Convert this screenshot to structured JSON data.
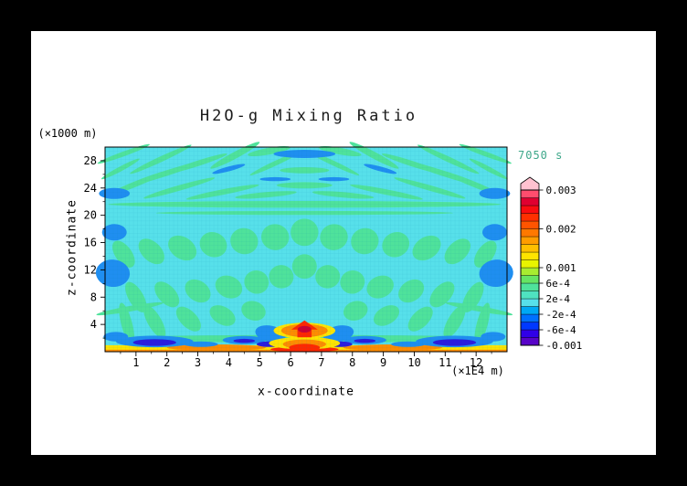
{
  "window": {
    "background": "#000000",
    "page_background": "#ffffff"
  },
  "chart_data": {
    "type": "heatmap",
    "title": "H2O-g Mixing Ratio",
    "xlabel": "x-coordinate",
    "ylabel": "z-coordinate",
    "x_unit": "(×1E4 m)",
    "y_unit": "(×1000 m)",
    "time_label": "7050 s",
    "time_color": "#3da789",
    "grid": true,
    "legend_position": "right",
    "xlim": [
      0,
      13
    ],
    "zlim": [
      0,
      30
    ],
    "x_ticks": [
      1,
      2,
      3,
      4,
      5,
      6,
      7,
      8,
      9,
      10,
      11,
      12
    ],
    "z_ticks": [
      4,
      8,
      12,
      16,
      20,
      24,
      28
    ],
    "colorbar": {
      "min": -0.001,
      "max": 0.003,
      "band_step": 0.0002,
      "labels": [
        "0.003",
        "0.002",
        "0.001",
        "6e-4",
        "2e-4",
        "-2e-4",
        "-6e-4",
        "-0.001"
      ],
      "label_values": [
        0.003,
        0.002,
        0.001,
        0.0006,
        0.0002,
        -0.0002,
        -0.0006,
        -0.001
      ],
      "colors_bottom_to_top": [
        "#5804c8",
        "#3000e8",
        "#0038ff",
        "#0070ff",
        "#00a8f4",
        "#57e0ea",
        "#4fe2c0",
        "#4fe29b",
        "#66e463",
        "#a8ec30",
        "#e8f400",
        "#ffe400",
        "#ffc000",
        "#ff9c00",
        "#ff7800",
        "#ff5400",
        "#ff3000",
        "#fa0c10",
        "#e00030",
        "#ff4d6e"
      ],
      "overflow_color": "#ffc2d0"
    },
    "field": {
      "background_color": "#57e0ea",
      "palette": {
        "green": "#4fe29b",
        "blue": "#1f8ef0",
        "navy": "#2b1bdc",
        "yellow": "#ffe400",
        "orange": "#ff8c00",
        "red": "#ff2800",
        "darkred": "#cc0033"
      },
      "source_location": {
        "x": 6.45,
        "z": 3.2
      },
      "shapes": [
        [
          "e",
          0.6,
          29.0,
          0.9,
          0.35,
          -20,
          "green"
        ],
        [
          "e",
          1.8,
          28.2,
          1.1,
          0.4,
          -25,
          "green"
        ],
        [
          "e",
          3.0,
          27.6,
          1.0,
          0.4,
          -18,
          "green"
        ],
        [
          "e",
          4.2,
          28.8,
          0.9,
          0.5,
          -28,
          "green"
        ],
        [
          "e",
          5.3,
          29.4,
          0.7,
          0.5,
          -10,
          "green"
        ],
        [
          "e",
          7.6,
          29.4,
          0.7,
          0.5,
          10,
          "green"
        ],
        [
          "e",
          8.7,
          28.8,
          0.9,
          0.5,
          28,
          "green"
        ],
        [
          "e",
          9.9,
          27.6,
          1.0,
          0.4,
          18,
          "green"
        ],
        [
          "e",
          11.1,
          28.2,
          1.1,
          0.4,
          25,
          "green"
        ],
        [
          "e",
          12.3,
          29.0,
          0.9,
          0.35,
          20,
          "green"
        ],
        [
          "e",
          5.5,
          27.6,
          0.9,
          0.35,
          -25,
          "green"
        ],
        [
          "e",
          7.4,
          27.6,
          0.9,
          0.35,
          25,
          "green"
        ],
        [
          "e",
          2.0,
          26.2,
          1.2,
          0.4,
          -18,
          "green"
        ],
        [
          "e",
          10.9,
          26.2,
          1.2,
          0.4,
          18,
          "green"
        ],
        [
          "e",
          6.45,
          26.6,
          0.8,
          0.45,
          0,
          "green"
        ],
        [
          "e",
          0.5,
          26.8,
          0.7,
          0.35,
          -28,
          "green"
        ],
        [
          "e",
          12.4,
          26.8,
          0.7,
          0.35,
          28,
          "green"
        ],
        [
          "e",
          1.0,
          24.6,
          1.1,
          0.4,
          -22,
          "green"
        ],
        [
          "e",
          2.4,
          24.0,
          1.2,
          0.4,
          -16,
          "green"
        ],
        [
          "e",
          3.8,
          23.4,
          1.2,
          0.4,
          -11,
          "green"
        ],
        [
          "e",
          5.2,
          23.0,
          1.0,
          0.4,
          -5,
          "green"
        ],
        [
          "e",
          6.45,
          24.4,
          0.9,
          0.45,
          0,
          "green"
        ],
        [
          "e",
          7.7,
          23.0,
          1.0,
          0.4,
          5,
          "green"
        ],
        [
          "e",
          9.1,
          23.4,
          1.2,
          0.4,
          11,
          "green"
        ],
        [
          "e",
          10.5,
          24.0,
          1.2,
          0.4,
          16,
          "green"
        ],
        [
          "e",
          11.9,
          24.6,
          1.1,
          0.4,
          22,
          "green"
        ],
        [
          "e",
          6.45,
          21.6,
          6.35,
          0.5,
          0,
          "green"
        ],
        [
          "e",
          6.45,
          20.35,
          4.8,
          0.3,
          0,
          "green"
        ],
        [
          "e",
          6.45,
          17.5,
          0.45,
          2.0,
          0,
          "green"
        ],
        [
          "e",
          5.5,
          16.8,
          0.45,
          1.9,
          8,
          "green"
        ],
        [
          "e",
          7.4,
          16.8,
          0.45,
          1.9,
          -8,
          "green"
        ],
        [
          "e",
          4.5,
          16.2,
          0.45,
          1.9,
          16,
          "green"
        ],
        [
          "e",
          8.4,
          16.2,
          0.45,
          1.9,
          -16,
          "green"
        ],
        [
          "e",
          3.5,
          15.7,
          0.45,
          1.8,
          25,
          "green"
        ],
        [
          "e",
          9.4,
          15.7,
          0.45,
          1.8,
          -25,
          "green"
        ],
        [
          "e",
          2.5,
          15.2,
          0.5,
          1.6,
          34,
          "green"
        ],
        [
          "e",
          10.4,
          15.2,
          0.5,
          1.6,
          -34,
          "green"
        ],
        [
          "e",
          1.5,
          14.7,
          0.5,
          1.4,
          44,
          "green"
        ],
        [
          "e",
          11.4,
          14.7,
          0.5,
          1.4,
          -44,
          "green"
        ],
        [
          "e",
          0.6,
          14.3,
          0.5,
          1.2,
          54,
          "green"
        ],
        [
          "e",
          12.3,
          14.3,
          0.5,
          1.2,
          -54,
          "green"
        ],
        [
          "e",
          6.45,
          12.5,
          0.4,
          1.8,
          0,
          "green"
        ],
        [
          "e",
          5.7,
          11.0,
          0.4,
          1.7,
          7,
          "green"
        ],
        [
          "e",
          7.2,
          11.0,
          0.4,
          1.7,
          -7,
          "green"
        ],
        [
          "e",
          4.9,
          10.2,
          0.4,
          1.7,
          15,
          "green"
        ],
        [
          "e",
          8.0,
          10.2,
          0.4,
          1.7,
          -15,
          "green"
        ],
        [
          "e",
          4.0,
          9.5,
          0.45,
          1.6,
          24,
          "green"
        ],
        [
          "e",
          8.9,
          9.5,
          0.45,
          1.6,
          -24,
          "green"
        ],
        [
          "e",
          3.0,
          8.9,
          0.45,
          1.5,
          35,
          "green"
        ],
        [
          "e",
          9.9,
          8.9,
          0.45,
          1.5,
          -35,
          "green"
        ],
        [
          "e",
          2.0,
          8.4,
          0.5,
          1.3,
          47,
          "green"
        ],
        [
          "e",
          10.9,
          8.4,
          0.5,
          1.3,
          -47,
          "green"
        ],
        [
          "e",
          1.0,
          8.0,
          0.55,
          1.1,
          60,
          "green"
        ],
        [
          "e",
          11.9,
          8.0,
          0.55,
          1.1,
          -60,
          "green"
        ],
        [
          "e",
          4.8,
          6.0,
          0.4,
          1.4,
          18,
          "green"
        ],
        [
          "e",
          8.1,
          6.0,
          0.4,
          1.4,
          -18,
          "green"
        ],
        [
          "e",
          3.8,
          5.3,
          0.45,
          1.3,
          30,
          "green"
        ],
        [
          "e",
          9.1,
          5.3,
          0.45,
          1.3,
          -30,
          "green"
        ],
        [
          "e",
          2.7,
          4.8,
          0.5,
          1.2,
          45,
          "green"
        ],
        [
          "e",
          10.2,
          4.8,
          0.5,
          1.2,
          -45,
          "green"
        ],
        [
          "e",
          1.6,
          4.4,
          0.6,
          1.0,
          60,
          "green"
        ],
        [
          "e",
          11.3,
          4.4,
          0.6,
          1.0,
          -60,
          "green"
        ],
        [
          "e",
          0.7,
          4.1,
          0.7,
          0.8,
          75,
          "green"
        ],
        [
          "e",
          12.2,
          4.1,
          0.7,
          0.8,
          -75,
          "green"
        ],
        [
          "e",
          0.8,
          6.3,
          1.1,
          0.4,
          -10,
          "green"
        ],
        [
          "e",
          12.1,
          6.3,
          1.1,
          0.4,
          10,
          "green"
        ],
        [
          "e",
          6.45,
          1.9,
          6.5,
          0.55,
          0,
          "green"
        ],
        [
          "r",
          0,
          0,
          13,
          0.95,
          "yellow"
        ],
        [
          "e",
          3.6,
          0.6,
          1.6,
          0.45,
          0,
          "orange"
        ],
        [
          "e",
          9.3,
          0.6,
          1.6,
          0.45,
          0,
          "orange"
        ],
        [
          "r",
          0,
          0,
          13,
          0.3,
          "orange"
        ],
        [
          "e",
          6.45,
          0.35,
          1.1,
          0.4,
          0,
          "red"
        ],
        [
          "e",
          6.45,
          29.0,
          1.0,
          0.6,
          0,
          "blue"
        ],
        [
          "e",
          4.0,
          26.8,
          0.55,
          0.35,
          -15,
          "blue"
        ],
        [
          "e",
          8.9,
          26.8,
          0.55,
          0.35,
          15,
          "blue"
        ],
        [
          "e",
          0.3,
          23.2,
          0.5,
          0.8,
          0,
          "blue"
        ],
        [
          "e",
          12.6,
          23.2,
          0.5,
          0.8,
          0,
          "blue"
        ],
        [
          "e",
          5.5,
          25.3,
          0.5,
          0.3,
          0,
          "blue"
        ],
        [
          "e",
          7.4,
          25.3,
          0.5,
          0.3,
          0,
          "blue"
        ],
        [
          "e",
          0.25,
          11.5,
          0.55,
          2.0,
          5,
          "blue"
        ],
        [
          "e",
          12.65,
          11.5,
          0.55,
          2.0,
          -5,
          "blue"
        ],
        [
          "e",
          0.3,
          17.5,
          0.4,
          1.2,
          0,
          "blue"
        ],
        [
          "e",
          12.6,
          17.5,
          0.4,
          1.2,
          0,
          "blue"
        ],
        [
          "e",
          5.35,
          2.6,
          0.5,
          1.2,
          12,
          "blue"
        ],
        [
          "e",
          7.55,
          2.6,
          0.5,
          1.2,
          -12,
          "blue"
        ],
        [
          "e",
          1.6,
          1.5,
          1.25,
          0.85,
          0,
          "blue"
        ],
        [
          "e",
          11.3,
          1.5,
          1.25,
          0.85,
          0,
          "blue"
        ],
        [
          "e",
          4.5,
          1.7,
          0.7,
          0.6,
          0,
          "blue"
        ],
        [
          "e",
          8.4,
          1.7,
          0.7,
          0.6,
          0,
          "blue"
        ],
        [
          "e",
          3.1,
          1.1,
          0.55,
          0.4,
          0,
          "blue"
        ],
        [
          "e",
          9.8,
          1.1,
          0.55,
          0.4,
          0,
          "blue"
        ],
        [
          "e",
          0.35,
          2.2,
          0.4,
          0.7,
          0,
          "blue"
        ],
        [
          "e",
          12.55,
          2.2,
          0.4,
          0.7,
          0,
          "blue"
        ],
        [
          "e",
          1.6,
          1.35,
          0.7,
          0.5,
          0,
          "navy"
        ],
        [
          "e",
          11.3,
          1.35,
          0.7,
          0.5,
          0,
          "navy"
        ],
        [
          "e",
          4.5,
          1.6,
          0.35,
          0.3,
          0,
          "navy"
        ],
        [
          "e",
          8.4,
          1.6,
          0.35,
          0.3,
          0,
          "navy"
        ],
        [
          "e",
          5.3,
          1.1,
          0.4,
          0.4,
          0,
          "navy"
        ],
        [
          "e",
          7.6,
          1.1,
          0.4,
          0.4,
          0,
          "navy"
        ],
        [
          "e",
          6.45,
          1.25,
          1.15,
          0.9,
          0,
          "yellow"
        ],
        [
          "e",
          6.45,
          3.1,
          1.0,
          1.15,
          0,
          "yellow"
        ],
        [
          "e",
          6.45,
          3.1,
          0.75,
          0.95,
          0,
          "orange"
        ],
        [
          "e",
          6.45,
          1.1,
          0.7,
          0.7,
          0,
          "orange"
        ],
        [
          "p",
          "red",
          [
            [
              6.45,
              4.6
            ],
            [
              6.02,
              3.25
            ],
            [
              6.22,
              3.25
            ],
            [
              6.22,
              2.1
            ],
            [
              6.68,
              2.1
            ],
            [
              6.68,
              3.25
            ],
            [
              6.88,
              3.25
            ]
          ]
        ],
        [
          "e",
          6.45,
          0.6,
          0.5,
          0.55,
          0,
          "red"
        ],
        [
          "e",
          6.45,
          3.3,
          0.22,
          0.5,
          0,
          "darkred"
        ]
      ]
    }
  }
}
